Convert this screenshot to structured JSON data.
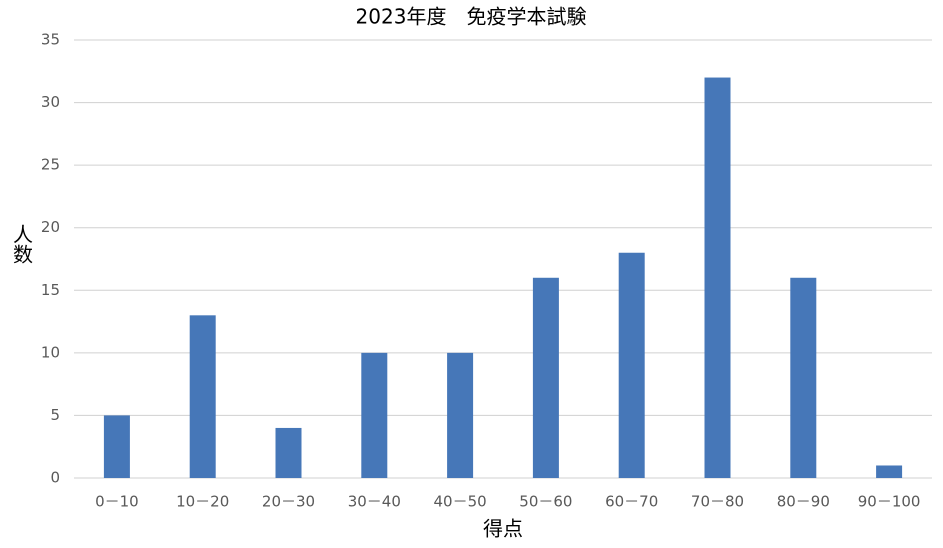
{
  "chart_data": {
    "type": "bar",
    "title": "2023年度　免疫学本試験",
    "x_label": "得点",
    "y_label": "人数",
    "categories": [
      "0－10",
      "10－20",
      "20－30",
      "30－40",
      "40－50",
      "50－60",
      "60－70",
      "70－80",
      "80－90",
      "90－100"
    ],
    "values": [
      5,
      13,
      4,
      10,
      10,
      16,
      18,
      32,
      16,
      1
    ],
    "color": "#4677b8",
    "ylim": [
      0,
      35
    ],
    "yticks": [
      0,
      5,
      10,
      15,
      20,
      25,
      30,
      35
    ],
    "grid": true
  }
}
